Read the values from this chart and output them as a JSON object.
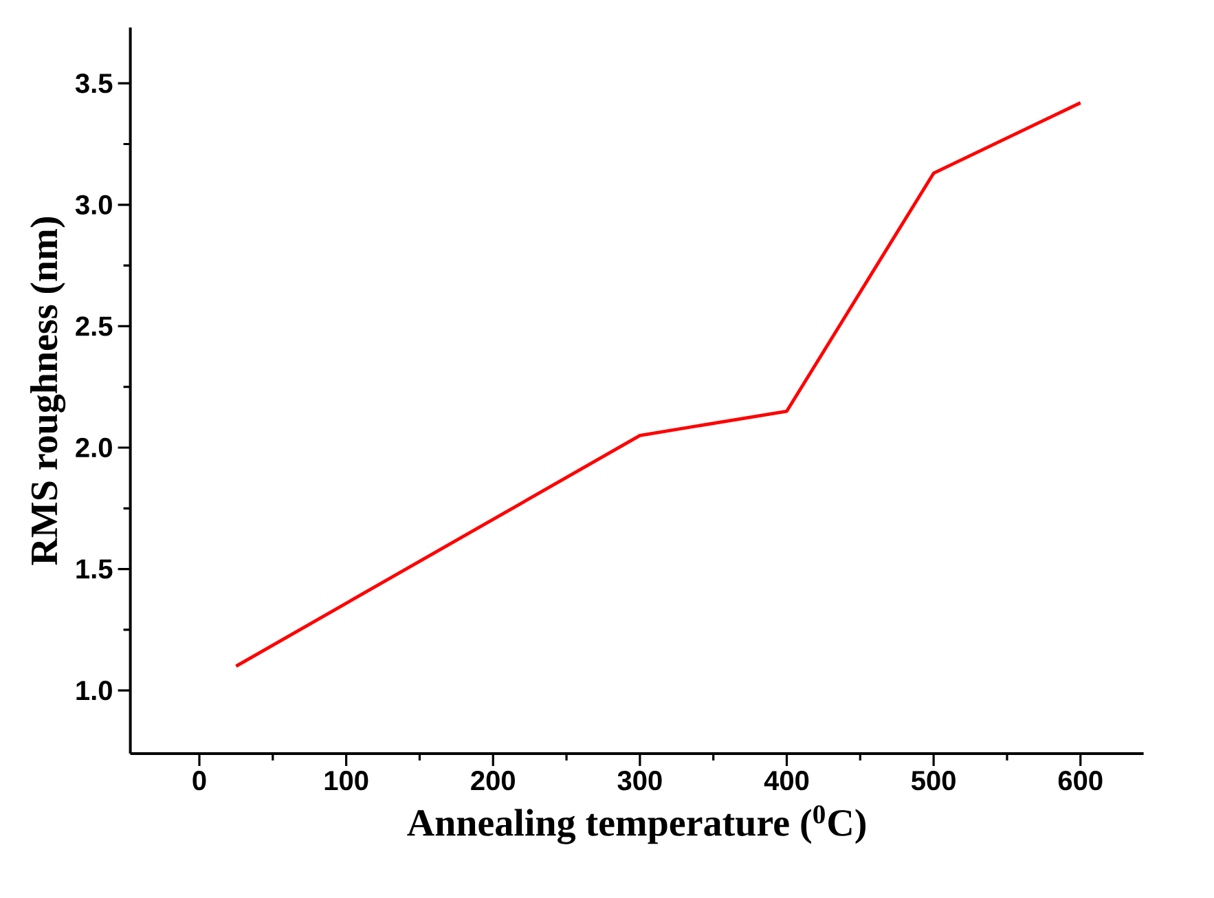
{
  "chart_data": {
    "type": "line",
    "xlabel": "Annealing temperature ($^{0}$C)",
    "ylabel": "RMS roughness (nm)",
    "x": [
      25,
      300,
      400,
      500,
      600
    ],
    "series": [
      {
        "color": "#ff0000",
        "values": [
          1.1,
          2.05,
          2.15,
          3.13,
          3.42
        ]
      }
    ],
    "xlim": [
      -47,
      643
    ],
    "ylim": [
      0.74,
      3.73
    ],
    "xticks": [
      0,
      100,
      200,
      300,
      400,
      500,
      600
    ],
    "yticks": [
      {
        "value": 1,
        "label": "1.0"
      },
      {
        "value": 1.5,
        "label": "1.5"
      },
      {
        "value": 2,
        "label": "2.0"
      },
      {
        "value": 2.5,
        "label": "2.5"
      },
      {
        "value": 3,
        "label": "3.0"
      },
      {
        "value": 3.5,
        "label": "3.5"
      }
    ],
    "grid": false,
    "marker": "none",
    "line_style": "solid"
  }
}
